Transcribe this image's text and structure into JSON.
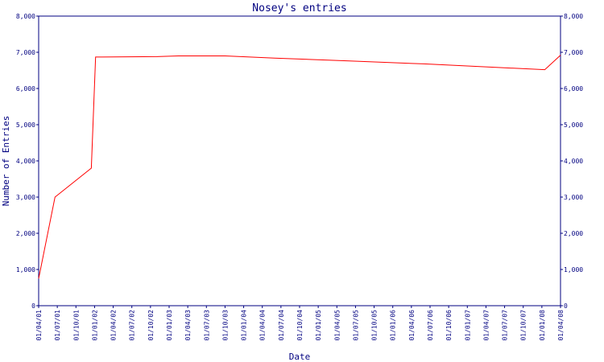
{
  "chart_data": {
    "type": "line",
    "title": "Nosey's entries",
    "xlabel": "Date",
    "ylabel": "Number of Entries",
    "ylim": [
      0,
      8000
    ],
    "y_ticks": [
      "0",
      "1,000",
      "2,000",
      "3,000",
      "4,000",
      "5,000",
      "6,000",
      "7,000",
      "8,000"
    ],
    "x_ticks": [
      "01/04/01",
      "01/07/01",
      "01/10/01",
      "01/01/02",
      "01/04/02",
      "01/07/02",
      "01/10/02",
      "01/01/03",
      "01/04/03",
      "01/07/03",
      "01/10/03",
      "01/01/04",
      "01/04/04",
      "01/07/04",
      "01/10/04",
      "01/01/05",
      "01/04/05",
      "01/07/05",
      "01/10/05",
      "01/01/06",
      "01/04/06",
      "01/07/06",
      "01/10/06",
      "01/01/07",
      "01/04/07",
      "01/07/07",
      "01/10/07",
      "01/01/08",
      "01/04/08"
    ],
    "x_range": [
      "2001-04-01",
      "2008-04-01"
    ],
    "grid": false,
    "right_axis": true,
    "series": [
      {
        "color": "#ff0000",
        "points": [
          {
            "x": "2001-04-01",
            "y": 750
          },
          {
            "x": "2001-06-20",
            "y": 3000
          },
          {
            "x": "2001-12-15",
            "y": 3800
          },
          {
            "x": "2002-01-05",
            "y": 6870
          },
          {
            "x": "2002-11-01",
            "y": 6880
          },
          {
            "x": "2003-02-15",
            "y": 6900
          },
          {
            "x": "2003-10-01",
            "y": 6900
          },
          {
            "x": "2004-06-01",
            "y": 6840
          },
          {
            "x": "2005-06-01",
            "y": 6760
          },
          {
            "x": "2006-06-01",
            "y": 6680
          },
          {
            "x": "2007-06-01",
            "y": 6580
          },
          {
            "x": "2008-01-15",
            "y": 6520
          },
          {
            "x": "2008-04-01",
            "y": 6920
          }
        ]
      }
    ]
  }
}
